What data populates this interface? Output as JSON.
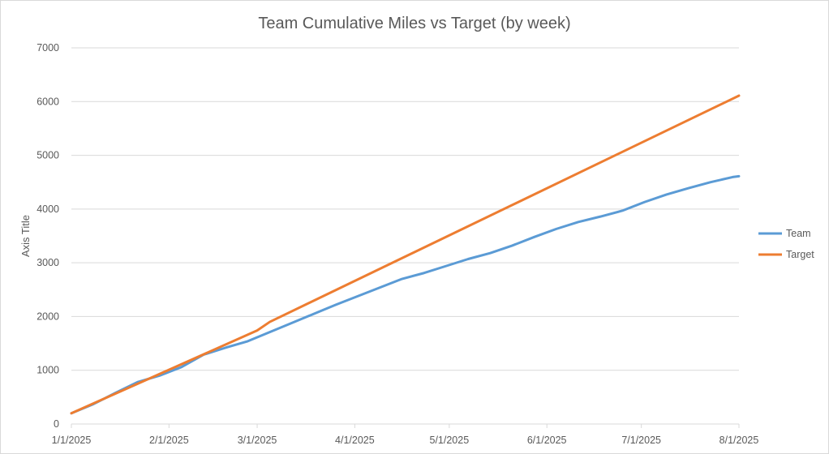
{
  "chart_data": {
    "type": "line",
    "title": "Team Cumulative Miles vs Target (by week)",
    "xlabel": "",
    "ylabel": "Axis Title",
    "x_axis": {
      "type": "date",
      "min": "2025-01-01",
      "max": "2025-08-01",
      "tick_labels": [
        "1/1/2025",
        "2/1/2025",
        "3/1/2025",
        "4/1/2025",
        "5/1/2025",
        "6/1/2025",
        "7/1/2025",
        "8/1/2025"
      ],
      "tick_dates": [
        "2025-01-01",
        "2025-02-01",
        "2025-03-01",
        "2025-04-01",
        "2025-05-01",
        "2025-06-01",
        "2025-07-01",
        "2025-08-01"
      ]
    },
    "ylim": [
      0,
      7000
    ],
    "y_ticks": [
      0,
      1000,
      2000,
      3000,
      4000,
      5000,
      6000,
      7000
    ],
    "grid": true,
    "legend_position": "right",
    "series": [
      {
        "name": "Team",
        "color": "#5B9BD5",
        "points": [
          {
            "x": "2025-01-01",
            "y": 200
          },
          {
            "x": "2025-01-08",
            "y": 370
          },
          {
            "x": "2025-01-15",
            "y": 580
          },
          {
            "x": "2025-01-22",
            "y": 780
          },
          {
            "x": "2025-01-29",
            "y": 900
          },
          {
            "x": "2025-02-05",
            "y": 1060
          },
          {
            "x": "2025-02-12",
            "y": 1290
          },
          {
            "x": "2025-02-19",
            "y": 1420
          },
          {
            "x": "2025-02-26",
            "y": 1540
          },
          {
            "x": "2025-03-05",
            "y": 1710
          },
          {
            "x": "2025-03-12",
            "y": 1880
          },
          {
            "x": "2025-03-19",
            "y": 2050
          },
          {
            "x": "2025-03-26",
            "y": 2220
          },
          {
            "x": "2025-04-02",
            "y": 2380
          },
          {
            "x": "2025-04-09",
            "y": 2540
          },
          {
            "x": "2025-04-16",
            "y": 2700
          },
          {
            "x": "2025-04-23",
            "y": 2810
          },
          {
            "x": "2025-04-30",
            "y": 2940
          },
          {
            "x": "2025-05-07",
            "y": 3070
          },
          {
            "x": "2025-05-14",
            "y": 3180
          },
          {
            "x": "2025-05-21",
            "y": 3320
          },
          {
            "x": "2025-05-28",
            "y": 3480
          },
          {
            "x": "2025-06-04",
            "y": 3630
          },
          {
            "x": "2025-06-11",
            "y": 3760
          },
          {
            "x": "2025-06-18",
            "y": 3860
          },
          {
            "x": "2025-06-25",
            "y": 3970
          },
          {
            "x": "2025-07-02",
            "y": 4130
          },
          {
            "x": "2025-07-09",
            "y": 4270
          },
          {
            "x": "2025-07-16",
            "y": 4390
          },
          {
            "x": "2025-07-23",
            "y": 4500
          },
          {
            "x": "2025-07-30",
            "y": 4595
          },
          {
            "x": "2025-08-01",
            "y": 4610
          }
        ]
      },
      {
        "name": "Target",
        "color": "#ED7D31",
        "points": [
          {
            "x": "2025-01-01",
            "y": 200
          },
          {
            "x": "2025-03-01",
            "y": 1740
          },
          {
            "x": "2025-03-05",
            "y": 1900
          },
          {
            "x": "2025-08-01",
            "y": 6110
          }
        ]
      }
    ]
  }
}
